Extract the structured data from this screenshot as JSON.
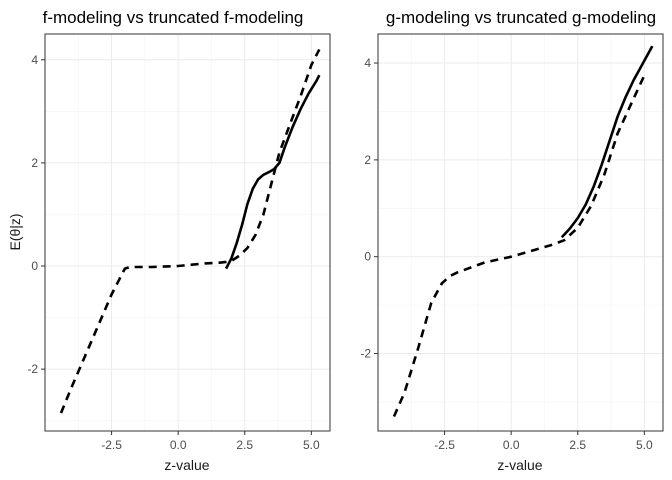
{
  "chart_data": [
    {
      "type": "line",
      "title": "f-modeling vs truncated f-modeling",
      "xlabel": "z-value",
      "ylabel": "E(θ|z)",
      "xlim": [
        -5.0,
        5.7
      ],
      "ylim": [
        -3.2,
        4.5
      ],
      "xticks": [
        -2.5,
        0.0,
        2.5,
        5.0
      ],
      "xtick_labels": [
        "-2.5",
        "0.0",
        "2.5",
        "5.0"
      ],
      "yticks": [
        -2,
        0,
        2,
        4
      ],
      "ytick_labels": [
        "-2",
        "0",
        "2",
        "4"
      ],
      "grid": true,
      "series": [
        {
          "style": "dashed",
          "x": [
            -4.4,
            -4.0,
            -3.5,
            -3.0,
            -2.5,
            -2.3,
            -2.1,
            -2.0,
            -1.8,
            -1.5,
            -1.0,
            0.0,
            1.0,
            1.5,
            1.8,
            2.0,
            2.3,
            2.6,
            2.9,
            3.2,
            3.5,
            3.8,
            4.2,
            4.6,
            5.0,
            5.3
          ],
          "y": [
            -2.85,
            -2.35,
            -1.75,
            -1.15,
            -0.55,
            -0.35,
            -0.15,
            -0.05,
            -0.02,
            -0.02,
            -0.02,
            0.0,
            0.05,
            0.06,
            0.08,
            0.1,
            0.2,
            0.35,
            0.6,
            1.0,
            1.6,
            2.2,
            2.75,
            3.3,
            3.9,
            4.2
          ]
        },
        {
          "style": "solid",
          "x": [
            1.8,
            2.0,
            2.2,
            2.4,
            2.6,
            2.8,
            3.0,
            3.2,
            3.4,
            3.6,
            3.8,
            4.0,
            4.3,
            4.6,
            4.9,
            5.2,
            5.3
          ],
          "y": [
            -0.05,
            0.15,
            0.45,
            0.8,
            1.2,
            1.5,
            1.68,
            1.77,
            1.82,
            1.88,
            2.0,
            2.3,
            2.7,
            3.05,
            3.35,
            3.6,
            3.7
          ]
        }
      ]
    },
    {
      "type": "line",
      "title": "g-modeling vs truncated g-modeling",
      "xlabel": "z-value",
      "ylabel": "",
      "xlim": [
        -5.0,
        5.7
      ],
      "ylim": [
        -3.6,
        4.6
      ],
      "xticks": [
        -2.5,
        0.0,
        2.5,
        5.0
      ],
      "xtick_labels": [
        "-2.5",
        "0.0",
        "2.5",
        "5.0"
      ],
      "yticks": [
        -2,
        0,
        2,
        4
      ],
      "ytick_labels": [
        "-2",
        "0",
        "2",
        "4"
      ],
      "grid": true,
      "series": [
        {
          "style": "dashed",
          "x": [
            -4.4,
            -4.0,
            -3.5,
            -3.0,
            -2.6,
            -2.3,
            -2.0,
            -1.5,
            -1.0,
            0.0,
            1.0,
            1.5,
            2.0,
            2.5,
            3.0,
            3.5,
            4.0,
            4.5,
            5.0
          ],
          "y": [
            -3.3,
            -2.8,
            -1.9,
            -0.95,
            -0.55,
            -0.4,
            -0.32,
            -0.22,
            -0.12,
            0.0,
            0.16,
            0.24,
            0.34,
            0.6,
            1.05,
            1.7,
            2.55,
            3.15,
            3.75
          ]
        },
        {
          "style": "solid",
          "x": [
            1.9,
            2.2,
            2.5,
            2.8,
            3.1,
            3.4,
            3.7,
            4.0,
            4.3,
            4.6,
            4.9,
            5.2,
            5.3
          ],
          "y": [
            0.4,
            0.58,
            0.8,
            1.08,
            1.45,
            1.9,
            2.4,
            2.9,
            3.3,
            3.65,
            3.95,
            4.25,
            4.35
          ]
        }
      ]
    }
  ]
}
